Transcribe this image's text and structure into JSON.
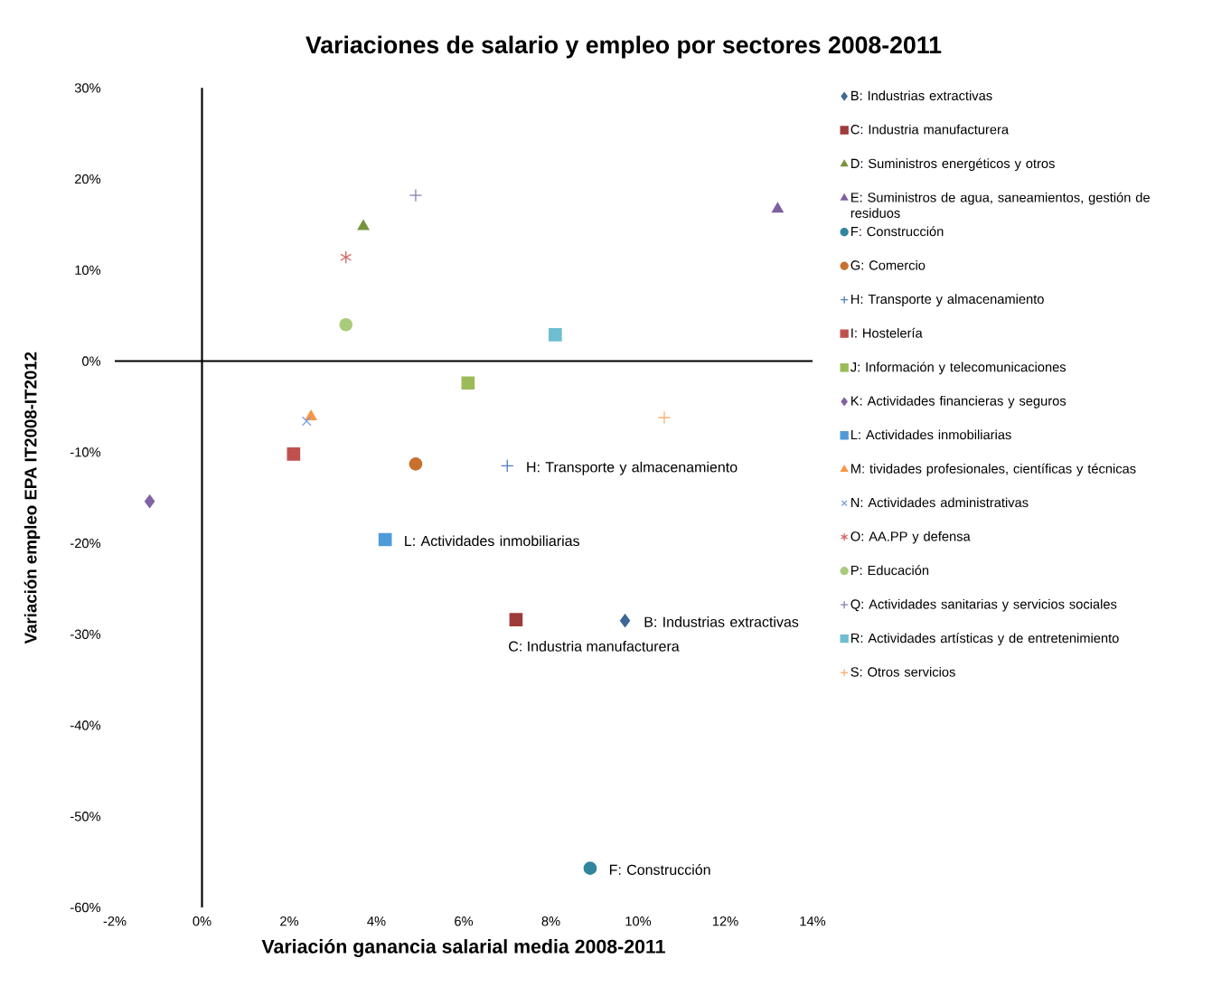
{
  "chart_data": {
    "type": "scatter",
    "title": "Variaciones de salario y empleo por sectores 2008-2011",
    "xlabel": "Variación ganancia salarial  media 2008-2011",
    "ylabel": "Variación empleo EPA IT2008-IT2012",
    "xlim": [
      -2,
      14
    ],
    "ylim": [
      -60,
      30
    ],
    "xticks": [
      {
        "value": -2,
        "label": "-2%"
      },
      {
        "value": 0,
        "label": "0%"
      },
      {
        "value": 2,
        "label": "2%"
      },
      {
        "value": 4,
        "label": "4%"
      },
      {
        "value": 6,
        "label": "6%"
      },
      {
        "value": 8,
        "label": "8%"
      },
      {
        "value": 10,
        "label": "10%"
      },
      {
        "value": 12,
        "label": "12%"
      },
      {
        "value": 14,
        "label": "14%"
      }
    ],
    "yticks": [
      {
        "value": -60,
        "label": "-60%"
      },
      {
        "value": -50,
        "label": "-50%"
      },
      {
        "value": -40,
        "label": "-40%"
      },
      {
        "value": -30,
        "label": "-30%"
      },
      {
        "value": -20,
        "label": "-20%"
      },
      {
        "value": -10,
        "label": "-10%"
      },
      {
        "value": 0,
        "label": "0%"
      },
      {
        "value": 10,
        "label": "10%"
      },
      {
        "value": 20,
        "label": "20%"
      },
      {
        "value": 30,
        "label": "30%"
      }
    ],
    "legend": "right",
    "series": [
      {
        "name": "B: Industrias extractivas",
        "color": "#3d6797",
        "marker": "diamond",
        "x": [
          9.7
        ],
        "values": [
          -28.5
        ]
      },
      {
        "name": "C: Industria manufacturera",
        "color": "#9e3b3b",
        "marker": "square",
        "x": [
          7.2
        ],
        "values": [
          -28.4
        ]
      },
      {
        "name": "D: Suministros energéticos y otros",
        "color": "#77933c",
        "marker": "triangle",
        "x": [
          3.7
        ],
        "values": [
          14.8
        ]
      },
      {
        "name": "E: Suministros de agua, saneamientos, gestión de residuos",
        "color": "#7d60a0",
        "marker": "triangle",
        "x": [
          13.2
        ],
        "values": [
          16.7
        ]
      },
      {
        "name": "F: Construcción",
        "color": "#31859c",
        "marker": "circle",
        "x": [
          8.9
        ],
        "values": [
          -55.7
        ]
      },
      {
        "name": "G: Comercio",
        "color": "#c8702e",
        "marker": "circle",
        "x": [
          4.9
        ],
        "values": [
          -11.3
        ]
      },
      {
        "name": "H: Transporte y almacenamiento",
        "color": "#4f81bd",
        "marker": "plus",
        "x": [
          7.0
        ],
        "values": [
          -11.5
        ]
      },
      {
        "name": "I: Hostelería",
        "color": "#c0504d",
        "marker": "square",
        "x": [
          2.1
        ],
        "values": [
          -10.2
        ]
      },
      {
        "name": "J: Información y telecomunicaciones",
        "color": "#9bbb59",
        "marker": "square",
        "x": [
          6.1
        ],
        "values": [
          -2.4
        ]
      },
      {
        "name": "K: Actividades financieras y seguros",
        "color": "#8064a2",
        "marker": "diamond",
        "x": [
          -1.2
        ],
        "values": [
          -15.4
        ]
      },
      {
        "name": "L: Actividades inmobiliarias",
        "color": "#4f9bd9",
        "marker": "square",
        "x": [
          4.2
        ],
        "values": [
          -19.6
        ]
      },
      {
        "name": "M: tividades profesionales, científicas y técnicas",
        "color": "#f79646",
        "marker": "triangle",
        "x": [
          2.5
        ],
        "values": [
          -6.1
        ]
      },
      {
        "name": "N: Actividades administrativas",
        "color": "#7f9fdd",
        "marker": "x",
        "x": [
          2.4
        ],
        "values": [
          -6.6
        ]
      },
      {
        "name": "O: AA.PP y defensa",
        "color": "#d36b6b",
        "marker": "cross",
        "x": [
          3.3
        ],
        "values": [
          11.4
        ]
      },
      {
        "name": "P: Educación",
        "color": "#a9cb7c",
        "marker": "circle",
        "x": [
          3.3
        ],
        "values": [
          4.0
        ]
      },
      {
        "name": "Q: Actividades sanitarias y servicios sociales",
        "color": "#8a7fb5",
        "marker": "plus",
        "x": [
          4.9
        ],
        "values": [
          18.2
        ]
      },
      {
        "name": "R: Actividades artísticas y de entretenimiento",
        "color": "#6fbdd1",
        "marker": "square",
        "x": [
          8.1
        ],
        "values": [
          2.9
        ]
      },
      {
        "name": "S: Otros servicios",
        "color": "#f9b37a",
        "marker": "plus",
        "x": [
          10.6
        ],
        "values": [
          -6.2
        ]
      }
    ],
    "annotations": [
      {
        "text": "B: Industrias extractivas",
        "x": 9.7,
        "y": -28.5
      },
      {
        "text": "C: Industria manufacturera",
        "x": 7.2,
        "y": -28.4
      },
      {
        "text": "F: Construcción",
        "x": 8.9,
        "y": -55.7
      },
      {
        "text": "H: Transporte y almacenamiento",
        "x": 7.0,
        "y": -11.5
      },
      {
        "text": "L: Actividades inmobiliarias",
        "x": 4.2,
        "y": -19.6
      }
    ]
  }
}
